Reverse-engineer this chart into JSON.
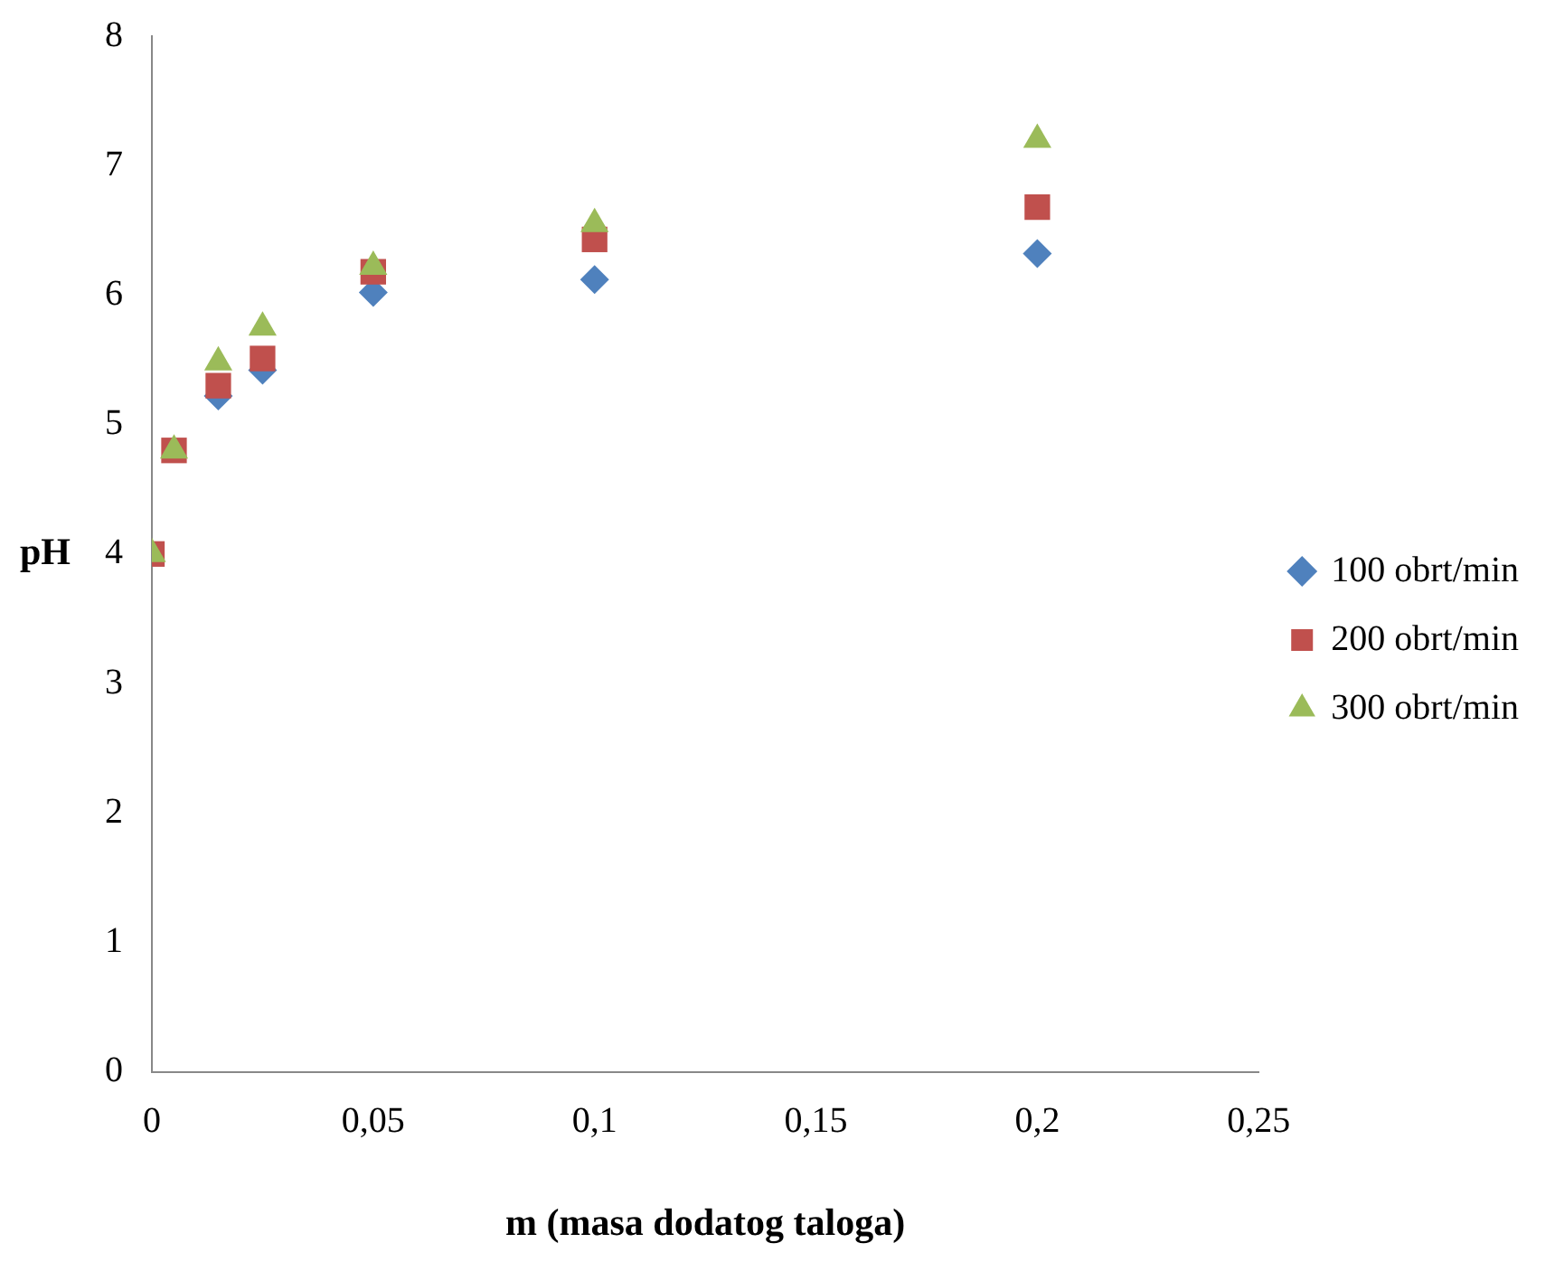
{
  "chart_data": {
    "type": "scatter",
    "xlabel": "m (masa dodatog taloga)",
    "ylabel": "pH",
    "x": [
      0,
      0.005,
      0.015,
      0.025,
      0.05,
      0.1,
      0.2
    ],
    "series": [
      {
        "name": "100 obrt/min",
        "color": "#4f81bd",
        "marker": "diamond",
        "values": [
          null,
          null,
          5.22,
          5.42,
          6.02,
          6.12,
          6.32
        ]
      },
      {
        "name": "200 obrt/min",
        "color": "#c0504d",
        "marker": "square",
        "values": [
          4,
          4.8,
          5.3,
          5.51,
          6.18,
          6.43,
          6.68
        ]
      },
      {
        "name": "300 obrt/min",
        "color": "#9bbb59",
        "marker": "triangle",
        "values": [
          4,
          4.8,
          5.48,
          5.75,
          6.22,
          6.55,
          7.2
        ]
      }
    ],
    "xlim": [
      0,
      0.25
    ],
    "xticks": [
      0,
      {
        "value": 0.05,
        "label": "0,05"
      },
      {
        "value": 0.1,
        "label": "0,1"
      },
      {
        "value": 0.15,
        "label": "0,15"
      },
      {
        "value": 0.2,
        "label": "0,2"
      },
      {
        "value": 0.25,
        "label": "0,25"
      }
    ],
    "ylim": [
      0,
      8
    ],
    "yticks": [
      0,
      1,
      2,
      3,
      4,
      5,
      6,
      7,
      8
    ],
    "grid": false,
    "legend": "right"
  }
}
